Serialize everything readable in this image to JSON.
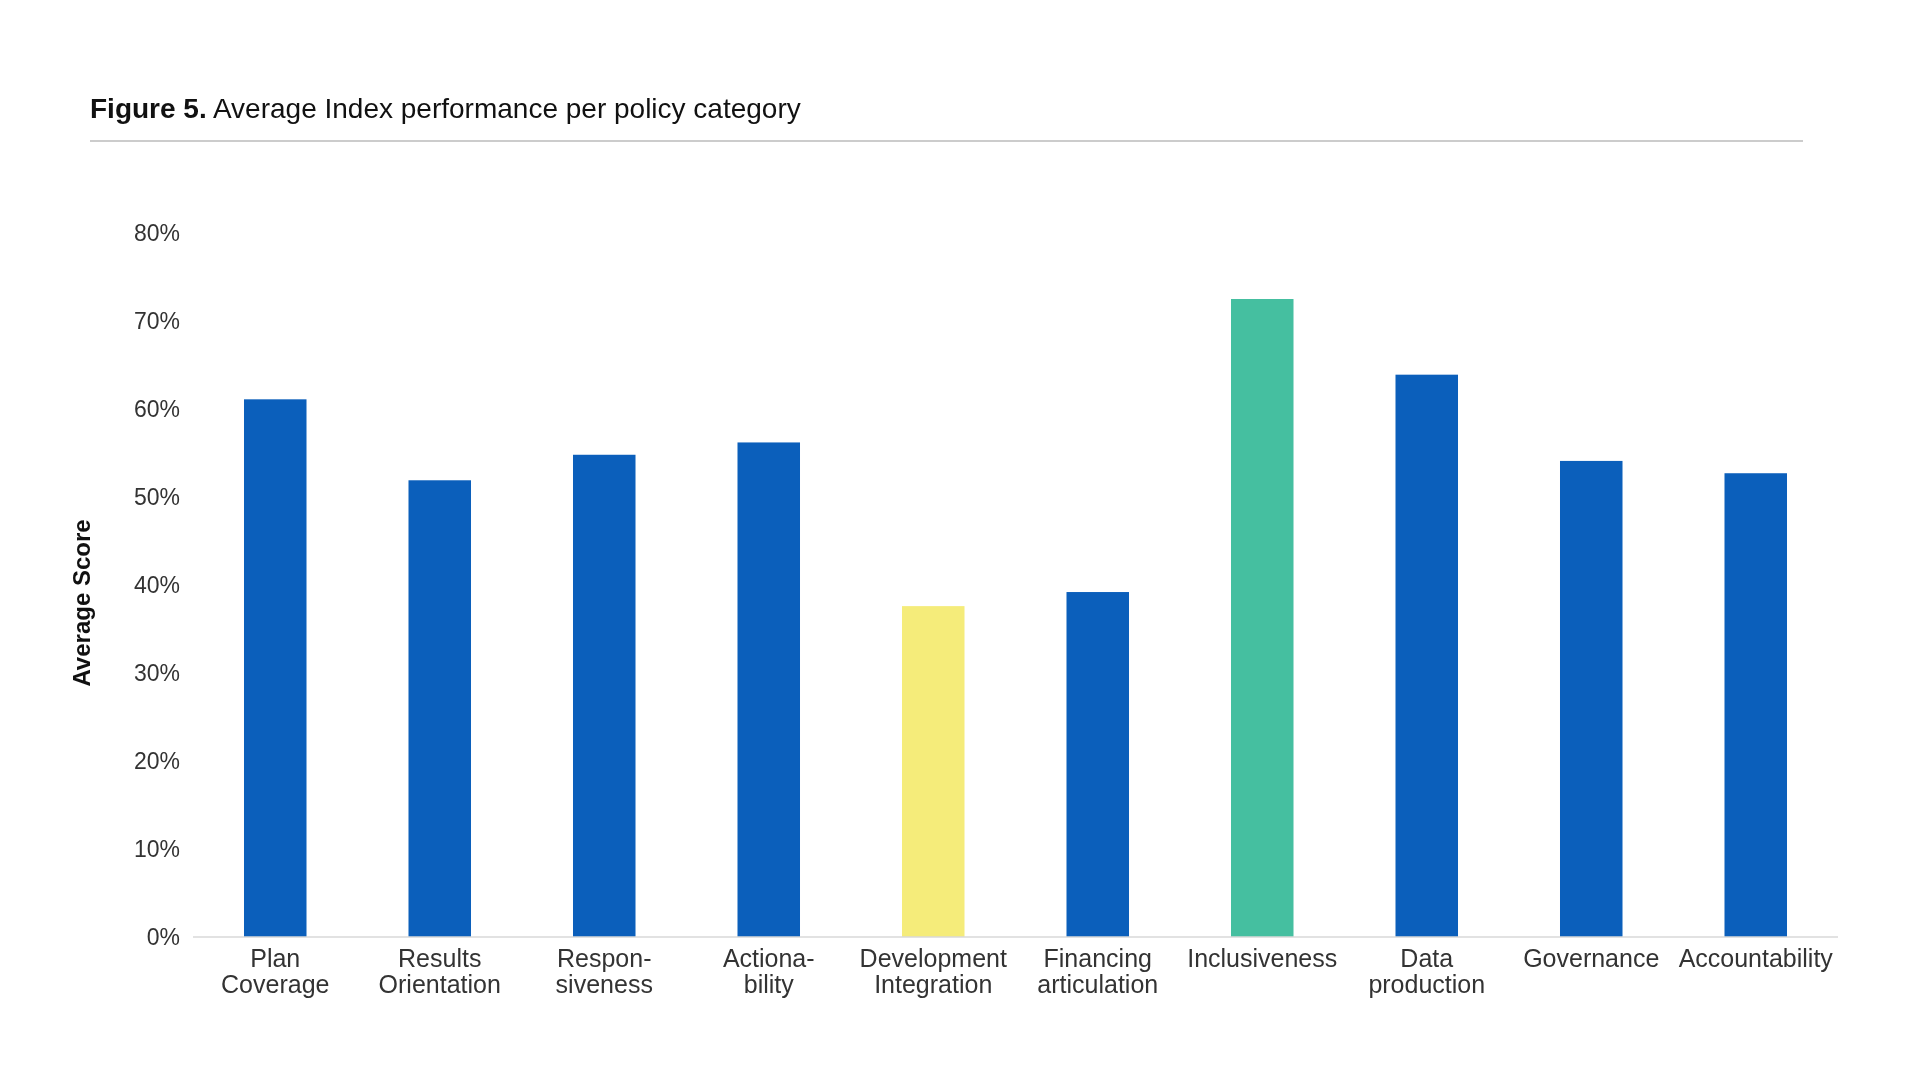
{
  "chart_data": {
    "type": "bar",
    "title": "Figure 5. Average Index performance per policy category",
    "ylabel": "Average Score",
    "categories": [
      "Plan\nCoverage",
      "Results\nOrientation",
      "Respon-\nsiveness",
      "Actiona-\nbility",
      "Development\nIntegration",
      "Financing\narticulation",
      "Inclusiveness",
      "Data\nproduction",
      "Governance",
      "Accountability"
    ],
    "values": [
      61.1,
      51.9,
      54.8,
      56.2,
      37.6,
      39.2,
      72.5,
      63.9,
      54.1,
      52.7
    ],
    "colors": [
      "#0b5fbb",
      "#0b5fbb",
      "#0b5fbb",
      "#0b5fbb",
      "#f5ec7a",
      "#0b5fbb",
      "#45bfa0",
      "#0b5fbb",
      "#0b5fbb",
      "#0b5fbb"
    ],
    "ylim": [
      0,
      80
    ],
    "yticks": [
      {
        "value": 0,
        "label": "0%"
      },
      {
        "value": 10,
        "label": "10%"
      },
      {
        "value": 20,
        "label": "20%"
      },
      {
        "value": 30,
        "label": "30%"
      },
      {
        "value": 40,
        "label": "40%"
      },
      {
        "value": 50,
        "label": "50%"
      },
      {
        "value": 60,
        "label": "60%"
      },
      {
        "value": 70,
        "label": "70%"
      },
      {
        "value": 80,
        "label": "80%"
      }
    ],
    "grid": false
  }
}
